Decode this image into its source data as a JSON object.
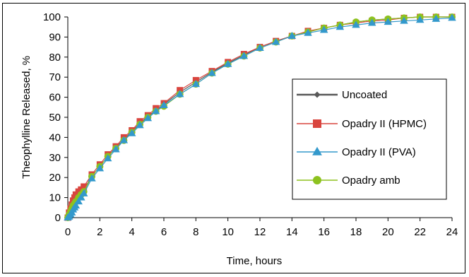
{
  "chart_data": {
    "type": "line",
    "title": "",
    "xlabel": "Time, hours",
    "ylabel": "Theophylline Released, %",
    "xlim": [
      0,
      24
    ],
    "ylim": [
      0,
      100
    ],
    "xticks": [
      0,
      2,
      4,
      6,
      8,
      10,
      12,
      14,
      16,
      18,
      20,
      22,
      24
    ],
    "yticks": [
      0,
      10,
      20,
      30,
      40,
      50,
      60,
      70,
      80,
      90,
      100
    ],
    "grid": false,
    "legend_position": "right",
    "series": [
      {
        "name": "Uncoated",
        "color": "#595959",
        "marker": "diamond",
        "x": [
          0,
          0.08,
          0.17,
          0.25,
          0.33,
          0.42,
          0.5,
          0.67,
          0.83,
          1,
          1.5,
          2,
          2.5,
          3,
          3.5,
          4,
          4.5,
          5,
          5.5,
          6,
          7,
          8,
          9,
          10,
          11,
          12,
          13,
          14,
          15,
          16,
          17,
          18,
          19,
          20,
          21,
          22,
          23,
          24
        ],
        "y": [
          0,
          2,
          3.5,
          5,
          6.5,
          8,
          9,
          11,
          12.5,
          14,
          20.5,
          25.5,
          30.5,
          35,
          39,
          43,
          47,
          50.5,
          53.5,
          56.5,
          62.5,
          67.5,
          72.5,
          77,
          81,
          85,
          88,
          90.5,
          92.5,
          94.5,
          96,
          97.5,
          98.5,
          99,
          99.5,
          100,
          100,
          100
        ]
      },
      {
        "name": "Opadry II (HPMC)",
        "color": "#d9453e",
        "marker": "square",
        "x": [
          0,
          0.08,
          0.17,
          0.25,
          0.33,
          0.42,
          0.5,
          0.67,
          0.83,
          1,
          1.5,
          2,
          2.5,
          3,
          3.5,
          4,
          4.5,
          5,
          5.5,
          6,
          7,
          8,
          9,
          10,
          11,
          12,
          13,
          14,
          15,
          16,
          17,
          18,
          19,
          20,
          21,
          22,
          23,
          24
        ],
        "y": [
          0,
          2.5,
          4.5,
          6.5,
          8.5,
          10,
          11.5,
          13,
          14,
          15.5,
          21.5,
          26.5,
          31.5,
          35.5,
          40,
          43.5,
          48,
          51,
          54.5,
          57,
          63.5,
          68.5,
          73,
          77.5,
          81.5,
          85,
          88,
          90.5,
          93,
          94.5,
          96,
          97,
          98,
          98.5,
          99.5,
          100,
          100,
          100
        ]
      },
      {
        "name": "Opadry II (PVA)",
        "color": "#3399cc",
        "marker": "triangle",
        "x": [
          0,
          0.08,
          0.17,
          0.25,
          0.33,
          0.42,
          0.5,
          0.67,
          0.83,
          1,
          1.5,
          2,
          2.5,
          3,
          3.5,
          4,
          4.5,
          5,
          5.5,
          6,
          7,
          8,
          9,
          10,
          11,
          12,
          13,
          14,
          15,
          16,
          17,
          18,
          19,
          20,
          21,
          22,
          23,
          24
        ],
        "y": [
          0,
          0.5,
          1.5,
          2.5,
          4,
          5,
          6,
          8,
          10,
          12,
          19.5,
          24.5,
          29.5,
          34,
          38.5,
          42,
          46,
          49.5,
          53,
          56,
          61.5,
          66.5,
          72,
          76.5,
          80.5,
          84.5,
          87.5,
          90.5,
          92,
          93.5,
          95,
          96,
          97,
          97.5,
          98,
          98.5,
          99,
          99.5
        ]
      },
      {
        "name": "Opadry amb",
        "color": "#8dc21f",
        "marker": "circle",
        "x": [
          0,
          0.08,
          0.17,
          0.25,
          0.33,
          0.42,
          0.5,
          0.67,
          0.83,
          1,
          1.5,
          2,
          2.5,
          3,
          3.5,
          4,
          4.5,
          5,
          5.5,
          6,
          7,
          8,
          9,
          10,
          11,
          12,
          13,
          14,
          15,
          16,
          17,
          18,
          19,
          20,
          21,
          22,
          23,
          24
        ],
        "y": [
          0,
          1.5,
          3,
          4.5,
          6,
          7,
          8,
          10,
          11.5,
          13,
          20.5,
          25.5,
          30.5,
          34.5,
          38.5,
          42.5,
          46.5,
          50,
          53,
          55.5,
          61.5,
          66.5,
          72,
          76.5,
          80.5,
          84.5,
          87.5,
          90.5,
          92.5,
          94.5,
          96,
          97.5,
          98.5,
          99,
          99.5,
          100,
          100,
          100
        ]
      }
    ]
  }
}
